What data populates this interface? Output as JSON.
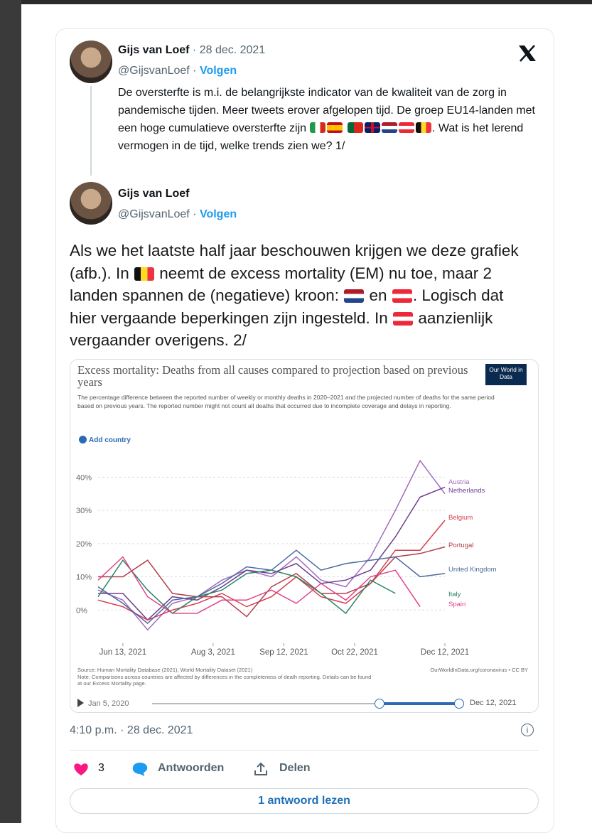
{
  "tweets": [
    {
      "name": "Gijs van Loef",
      "date": "· 28 dec. 2021",
      "handle": "@GijsvanLoef ·",
      "follow": "Volgen",
      "text": [
        "De oversterfte is m.i. de belangrijkste indicator van de kwaliteit van de zorg in pandemische tijden. Meer tweets erover afgelopen tijd. De groep EU14-landen met een hoge cumulatieve oversterfte zijn ",
        ". Wat is het lerend vermogen in de tijd, welke trends zien we? 1/"
      ]
    },
    {
      "name": "Gijs van Loef",
      "handle": "@GijsvanLoef ·",
      "follow": "Volgen",
      "text": [
        "Als we het laatste half jaar beschouwen krijgen we deze grafiek (afb.). In ",
        " neemt de excess mortality (EM) nu toe, maar 2 landen spannen de (negatieve) kroon: ",
        " en ",
        ". Logisch dat hier vergaande beperkingen zijn ingesteld. In ",
        " aanzienlijk vergaander overigens. 2/"
      ]
    }
  ],
  "image": {
    "title": "Excess mortality: Deaths from all causes compared to projection based on previous years",
    "subtitle": "The percentage difference between the reported number of weekly or monthly deaths in 2020–2021 and the projected number of deaths for the same period based on previous years. The reported number might not count all deaths that occurred due to incomplete coverage and delays in reporting.",
    "logo": "Our World in Data",
    "add_country": "Add country",
    "source": "Source: Human Mortality Database (2021), World Mortality Dataset (2021)",
    "note": "Note: Comparisons across countries are affected by differences in the completeness of death reporting. Details can be found at our Excess Mortality page.",
    "credit": "OurWorldInData.org/coronavirus • CC BY",
    "slider_start": "Jan 5, 2020",
    "slider_end": "Dec 12, 2021",
    "chart": {
      "type": "line",
      "x": [
        "2021-05-30",
        "2021-06-13",
        "2021-06-27",
        "2021-07-11",
        "2021-07-25",
        "2021-08-08",
        "2021-08-22",
        "2021-09-05",
        "2021-09-19",
        "2021-10-03",
        "2021-10-17",
        "2021-10-31",
        "2021-11-14",
        "2021-11-28",
        "2021-12-12"
      ],
      "xlim": [
        "2021-05-30",
        "2021-12-12"
      ],
      "xticks": [
        {
          "value": "2021-06-13",
          "label": "Jun 13, 2021"
        },
        {
          "value": "2021-08-03",
          "label": "Aug 3, 2021"
        },
        {
          "value": "2021-09-12",
          "label": "Sep 12, 2021"
        },
        {
          "value": "2021-10-22",
          "label": "Oct 22, 2021"
        },
        {
          "value": "2021-12-12",
          "label": "Dec 12, 2021"
        }
      ],
      "ylim": [
        -10,
        45
      ],
      "yticks": [
        {
          "value": 0,
          "label": "0%"
        },
        {
          "value": 10,
          "label": "10%"
        },
        {
          "value": 20,
          "label": "20%"
        },
        {
          "value": 30,
          "label": "30%"
        },
        {
          "value": 40,
          "label": "40%"
        }
      ],
      "grid": true,
      "series": [
        {
          "name": "Austria",
          "color": "#a26bc2",
          "values": [
            6,
            3,
            -6,
            2,
            4,
            9,
            12,
            10,
            16,
            9,
            7,
            16,
            30,
            45,
            35
          ]
        },
        {
          "name": "Netherlands",
          "color": "#6d3e91",
          "values": [
            5,
            5,
            -3,
            4,
            3,
            7,
            12,
            11,
            14,
            8,
            9,
            12,
            22,
            34,
            37
          ]
        },
        {
          "name": "Belgium",
          "color": "#d73c50",
          "values": [
            3,
            1,
            -3,
            0,
            2,
            5,
            1,
            4,
            10,
            4,
            2,
            8,
            18,
            18,
            27
          ]
        },
        {
          "name": "Portugal",
          "color": "#b13f4a",
          "values": [
            10,
            10,
            15,
            5,
            4,
            4,
            -2,
            7,
            11,
            5,
            5,
            8,
            16,
            17,
            19
          ]
        },
        {
          "name": "United Kingdom",
          "color": "#4c6a9c",
          "values": [
            7,
            2,
            -4,
            3,
            4,
            8,
            13,
            12,
            18,
            12,
            14,
            15,
            16,
            10,
            11
          ]
        },
        {
          "name": "Italy",
          "color": "#2c8465",
          "values": [
            4,
            15,
            6,
            -1,
            4,
            6,
            11,
            12,
            10,
            5,
            -1,
            9,
            5,
            null,
            null
          ]
        },
        {
          "name": "Spain",
          "color": "#e0438c",
          "values": [
            9,
            16,
            4,
            -1,
            -1,
            3,
            3,
            6,
            2,
            8,
            3,
            10,
            12,
            1,
            null
          ]
        }
      ]
    }
  },
  "footer": {
    "time": "4:10 p.m. · 28 dec. 2021",
    "likes": 3,
    "reply": "Antwoorden",
    "share": "Delen",
    "read_replies": "1 antwoord lezen"
  }
}
